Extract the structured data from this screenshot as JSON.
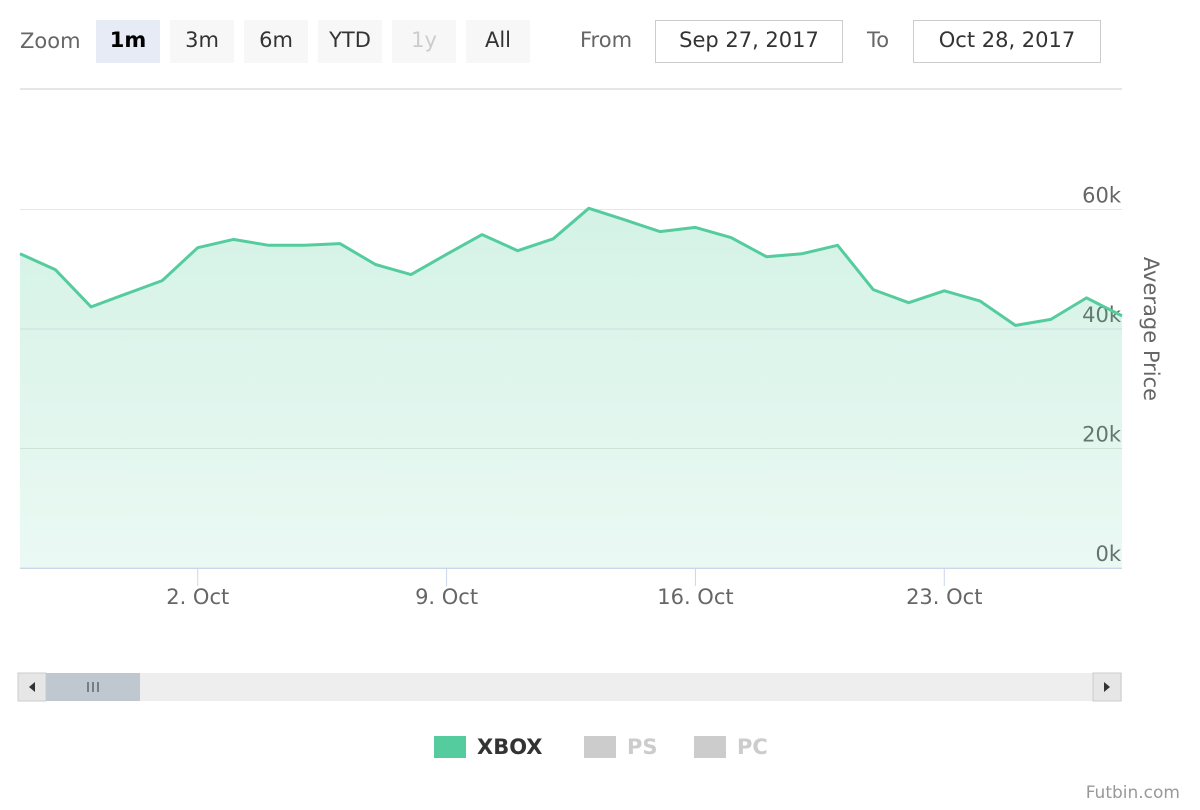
{
  "chart_data": {
    "type": "area",
    "zoom": {
      "label": "Zoom",
      "buttons": [
        "1m",
        "3m",
        "6m",
        "YTD",
        "1y",
        "All"
      ],
      "selected_index": 0,
      "disabled_index": 4
    },
    "range": {
      "from_label": "From",
      "from": "Sep 27, 2017",
      "to_label": "To",
      "to": "Oct 28, 2017"
    },
    "x": [
      "2017-09-27",
      "2017-09-28",
      "2017-09-29",
      "2017-09-30",
      "2017-10-01",
      "2017-10-02",
      "2017-10-03",
      "2017-10-04",
      "2017-10-05",
      "2017-10-06",
      "2017-10-07",
      "2017-10-08",
      "2017-10-09",
      "2017-10-10",
      "2017-10-11",
      "2017-10-12",
      "2017-10-13",
      "2017-10-14",
      "2017-10-15",
      "2017-10-16",
      "2017-10-17",
      "2017-10-18",
      "2017-10-19",
      "2017-10-20",
      "2017-10-21",
      "2017-10-22",
      "2017-10-23",
      "2017-10-24",
      "2017-10-25",
      "2017-10-26",
      "2017-10-27",
      "2017-10-28"
    ],
    "series": [
      {
        "name": "XBOX",
        "color": "#55cc9d",
        "visible": true,
        "values": [
          52600,
          49900,
          43700,
          45900,
          48100,
          53600,
          55000,
          54000,
          54000,
          54300,
          50800,
          49100,
          52500,
          55800,
          53100,
          55100,
          60200,
          58300,
          56300,
          57000,
          55300,
          52100,
          52600,
          54000,
          46600,
          44400,
          46400,
          44700,
          40600,
          41600,
          45200,
          42200
        ]
      },
      {
        "name": "PS",
        "color": "#cccccc",
        "visible": false
      },
      {
        "name": "PC",
        "color": "#cccccc",
        "visible": false
      }
    ],
    "xlim": [
      "2017-09-27",
      "2017-10-28"
    ],
    "xticks": [
      {
        "value": "2017-10-02",
        "label": "2. Oct"
      },
      {
        "value": "2017-10-09",
        "label": "9. Oct"
      },
      {
        "value": "2017-10-16",
        "label": "16. Oct"
      },
      {
        "value": "2017-10-23",
        "label": "23. Oct"
      }
    ],
    "ylim": [
      0,
      80000
    ],
    "yticks": [
      {
        "value": 0,
        "label": "0k"
      },
      {
        "value": 20000,
        "label": "20k"
      },
      {
        "value": 40000,
        "label": "40k"
      },
      {
        "value": 60000,
        "label": "60k"
      }
    ],
    "y_axis_title": "Average Price",
    "grid": true,
    "credits": "Futbin.com"
  }
}
